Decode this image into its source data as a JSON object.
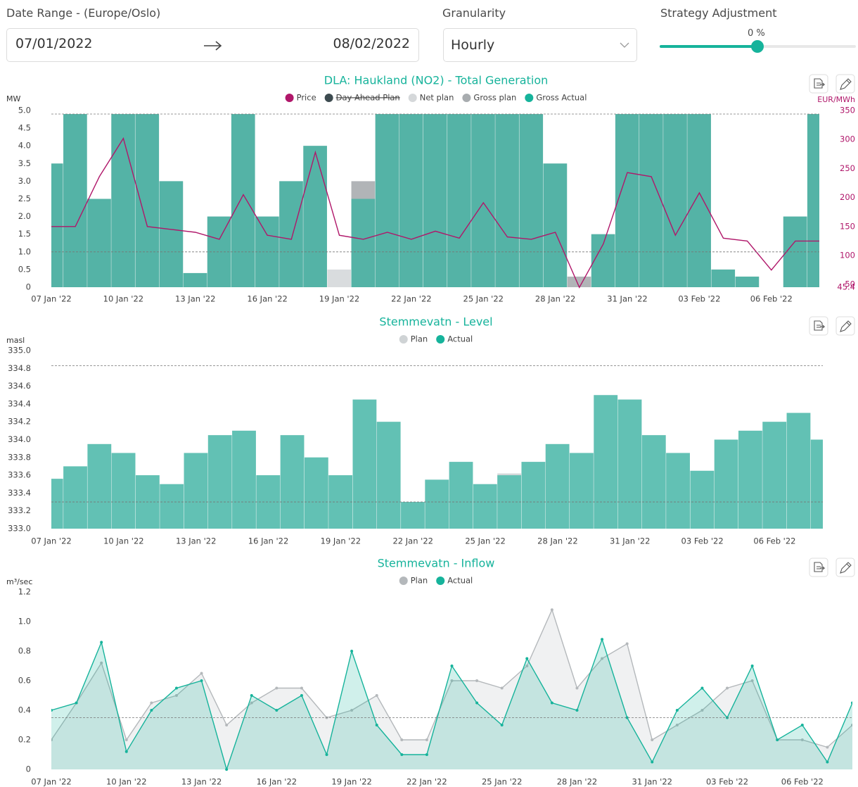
{
  "controls": {
    "date_range_label": "Date Range - (Europe/Oslo)",
    "start_date": "07/01/2022",
    "end_date": "08/02/2022",
    "granularity_label": "Granularity",
    "granularity": "Hourly",
    "strategy_label": "Strategy Adjustment",
    "strategy_value": "0 %"
  },
  "chart_data": [
    {
      "type": "bar",
      "title": "DLA: Haukland (NO2) - Total Generation",
      "ylabel": "MW",
      "y2label": "EUR/MWh",
      "x": [
        "2022-01-07",
        "2022-01-08",
        "2022-01-09",
        "2022-01-10",
        "2022-01-11",
        "2022-01-12",
        "2022-01-13",
        "2022-01-14",
        "2022-01-15",
        "2022-01-16",
        "2022-01-17",
        "2022-01-18",
        "2022-01-19",
        "2022-01-20",
        "2022-01-21",
        "2022-01-22",
        "2022-01-23",
        "2022-01-24",
        "2022-01-25",
        "2022-01-26",
        "2022-01-27",
        "2022-01-28",
        "2022-01-29",
        "2022-01-30",
        "2022-01-31",
        "2022-02-01",
        "2022-02-02",
        "2022-02-03",
        "2022-02-04",
        "2022-02-05",
        "2022-02-06",
        "2022-02-07",
        "2022-02-08"
      ],
      "xlim": [
        "2022-01-07",
        "2022-02-08"
      ],
      "xticks": [
        {
          "value": "2022-01-07",
          "label": "07 Jan '22"
        },
        {
          "value": "2022-01-10",
          "label": "10 Jan '22"
        },
        {
          "value": "2022-01-13",
          "label": "13 Jan '22"
        },
        {
          "value": "2022-01-16",
          "label": "16 Jan '22"
        },
        {
          "value": "2022-01-19",
          "label": "19 Jan '22"
        },
        {
          "value": "2022-01-22",
          "label": "22 Jan '22"
        },
        {
          "value": "2022-01-25",
          "label": "25 Jan '22"
        },
        {
          "value": "2022-01-28",
          "label": "28 Jan '22"
        },
        {
          "value": "2022-01-31",
          "label": "31 Jan '22"
        },
        {
          "value": "2022-02-03",
          "label": "03 Feb '22"
        },
        {
          "value": "2022-02-06",
          "label": "06 Feb '22"
        }
      ],
      "ylim": [
        0,
        5
      ],
      "yticks": [
        0,
        0.5,
        {
          "value": 1,
          "label": "1.0"
        },
        1.5,
        {
          "value": 2,
          "label": "2.0"
        },
        2.5,
        {
          "value": 3,
          "label": "3.0"
        },
        3.5,
        {
          "value": 4,
          "label": "4.0"
        },
        4.5,
        {
          "value": 5,
          "label": "5.0"
        }
      ],
      "y2lim": [
        45.4,
        350
      ],
      "y2ticks": [
        45.4,
        50,
        100,
        150,
        200,
        250,
        300,
        350
      ],
      "reference_lines": [
        4.9,
        1.0
      ],
      "series": [
        {
          "name": "Price",
          "type": "line",
          "axis": "y2",
          "color": "#b0176a",
          "values": [
            150,
            150,
            236,
            302,
            150,
            145,
            140,
            128,
            205,
            135,
            128,
            278,
            135,
            128,
            140,
            128,
            142,
            130,
            191,
            132,
            128,
            140,
            45,
            120,
            243,
            236,
            135,
            208,
            130,
            125,
            75,
            125,
            125
          ]
        },
        {
          "name": "Day Ahead Plan",
          "hidden": true,
          "color": "#3d4b50",
          "values": [
            null,
            null,
            null,
            null,
            null,
            null,
            null,
            null,
            null,
            null,
            null,
            null,
            null,
            null,
            null,
            null,
            null,
            null,
            null,
            null,
            null,
            null,
            null,
            null,
            null,
            null,
            null,
            null,
            null,
            null,
            null,
            null,
            null
          ]
        },
        {
          "name": "Net plan",
          "color": "#d5d8da",
          "values": [
            0,
            0,
            0,
            0,
            0,
            0,
            0,
            0,
            0,
            0,
            0,
            0,
            0.5,
            0,
            0,
            0,
            0,
            0,
            0,
            0,
            0,
            0,
            0,
            0,
            0,
            0,
            0,
            0,
            0,
            0,
            0,
            0,
            0
          ]
        },
        {
          "name": "Gross plan",
          "color": "#a8acaf",
          "values": [
            3.5,
            4.9,
            2.5,
            4.9,
            4.9,
            3.0,
            0.4,
            2.0,
            4.9,
            2.0,
            3.0,
            4.0,
            0,
            3.0,
            4.9,
            4.9,
            4.9,
            4.9,
            4.9,
            4.9,
            4.9,
            3.5,
            0.3,
            1.5,
            4.9,
            4.9,
            4.9,
            4.9,
            0.5,
            0.3,
            0,
            2.0,
            4.9
          ]
        },
        {
          "name": "Gross Actual",
          "color": "#16b39b",
          "values": [
            3.5,
            4.9,
            2.5,
            4.9,
            4.9,
            3.0,
            0.4,
            2.0,
            4.9,
            2.0,
            3.0,
            4.0,
            0,
            2.5,
            4.9,
            4.9,
            4.9,
            4.9,
            4.9,
            4.9,
            4.9,
            3.5,
            0,
            1.5,
            4.9,
            4.9,
            4.9,
            4.9,
            0.5,
            0.3,
            0,
            2.0,
            4.9
          ]
        }
      ]
    },
    {
      "type": "bar",
      "title": "Stemmevatn - Level",
      "ylabel": "masl",
      "x": [
        "2022-01-07",
        "2022-01-08",
        "2022-01-09",
        "2022-01-10",
        "2022-01-11",
        "2022-01-12",
        "2022-01-13",
        "2022-01-14",
        "2022-01-15",
        "2022-01-16",
        "2022-01-17",
        "2022-01-18",
        "2022-01-19",
        "2022-01-20",
        "2022-01-21",
        "2022-01-22",
        "2022-01-23",
        "2022-01-24",
        "2022-01-25",
        "2022-01-26",
        "2022-01-27",
        "2022-01-28",
        "2022-01-29",
        "2022-01-30",
        "2022-01-31",
        "2022-02-01",
        "2022-02-02",
        "2022-02-03",
        "2022-02-04",
        "2022-02-05",
        "2022-02-06",
        "2022-02-07",
        "2022-02-08"
      ],
      "xlim": [
        "2022-01-07",
        "2022-02-08"
      ],
      "xticks": [
        {
          "value": "2022-01-07",
          "label": "07 Jan '22"
        },
        {
          "value": "2022-01-10",
          "label": "10 Jan '22"
        },
        {
          "value": "2022-01-13",
          "label": "13 Jan '22"
        },
        {
          "value": "2022-01-16",
          "label": "16 Jan '22"
        },
        {
          "value": "2022-01-19",
          "label": "19 Jan '22"
        },
        {
          "value": "2022-01-22",
          "label": "22 Jan '22"
        },
        {
          "value": "2022-01-25",
          "label": "25 Jan '22"
        },
        {
          "value": "2022-01-28",
          "label": "28 Jan '22"
        },
        {
          "value": "2022-01-31",
          "label": "31 Jan '22"
        },
        {
          "value": "2022-02-03",
          "label": "03 Feb '22"
        },
        {
          "value": "2022-02-06",
          "label": "06 Feb '22"
        }
      ],
      "ylim": [
        333,
        335
      ],
      "yticks": [
        {
          "value": 333,
          "label": "333.0"
        },
        333.2,
        333.4,
        333.6,
        333.8,
        {
          "value": 334,
          "label": "334.0"
        },
        334.2,
        334.4,
        334.6,
        334.8,
        {
          "value": 335,
          "label": "335.0"
        }
      ],
      "reference_lines": [
        334.83,
        333.3
      ],
      "series": [
        {
          "name": "Plan",
          "color": "#cfd3d5",
          "values": [
            333.56,
            333.7,
            333.95,
            333.85,
            333.6,
            333.5,
            333.85,
            334.05,
            334.1,
            333.6,
            334.05,
            333.8,
            333.6,
            334.45,
            334.2,
            333.3,
            333.55,
            333.75,
            333.5,
            333.62,
            333.75,
            333.95,
            333.85,
            334.5,
            334.45,
            334.05,
            333.85,
            333.65,
            334.0,
            334.1,
            334.2,
            334.3,
            334.0
          ]
        },
        {
          "name": "Actual",
          "color": "#16b39b",
          "values": [
            333.56,
            333.7,
            333.95,
            333.85,
            333.6,
            333.5,
            333.85,
            334.05,
            334.1,
            333.6,
            334.05,
            333.8,
            333.6,
            334.45,
            334.2,
            333.3,
            333.55,
            333.75,
            333.5,
            333.6,
            333.75,
            333.95,
            333.85,
            334.5,
            334.45,
            334.05,
            333.85,
            333.65,
            334.0,
            334.1,
            334.2,
            334.3,
            334.0
          ]
        }
      ]
    },
    {
      "type": "area",
      "title": "Stemmevatn - Inflow",
      "ylabel": "m³/sec",
      "x": [
        "2022-01-07",
        "2022-01-08",
        "2022-01-09",
        "2022-01-10",
        "2022-01-11",
        "2022-01-12",
        "2022-01-13",
        "2022-01-14",
        "2022-01-15",
        "2022-01-16",
        "2022-01-17",
        "2022-01-18",
        "2022-01-19",
        "2022-01-20",
        "2022-01-21",
        "2022-01-22",
        "2022-01-23",
        "2022-01-24",
        "2022-01-25",
        "2022-01-26",
        "2022-01-27",
        "2022-01-28",
        "2022-01-29",
        "2022-01-30",
        "2022-01-31",
        "2022-02-01",
        "2022-02-02",
        "2022-02-03",
        "2022-02-04",
        "2022-02-05",
        "2022-02-06",
        "2022-02-07",
        "2022-02-08"
      ],
      "xlim": [
        "2022-01-07",
        "2022-02-08"
      ],
      "xticks": [
        {
          "value": "2022-01-07",
          "label": "07 Jan '22"
        },
        {
          "value": "2022-01-10",
          "label": "10 Jan '22"
        },
        {
          "value": "2022-01-13",
          "label": "13 Jan '22"
        },
        {
          "value": "2022-01-16",
          "label": "16 Jan '22"
        },
        {
          "value": "2022-01-19",
          "label": "19 Jan '22"
        },
        {
          "value": "2022-01-22",
          "label": "22 Jan '22"
        },
        {
          "value": "2022-01-25",
          "label": "25 Jan '22"
        },
        {
          "value": "2022-01-28",
          "label": "28 Jan '22"
        },
        {
          "value": "2022-01-31",
          "label": "31 Jan '22"
        },
        {
          "value": "2022-02-03",
          "label": "03 Feb '22"
        },
        {
          "value": "2022-02-06",
          "label": "06 Feb '22"
        }
      ],
      "ylim": [
        0,
        1.2
      ],
      "yticks": [
        0,
        0.2,
        0.4,
        0.6,
        0.8,
        {
          "value": 1,
          "label": "1.0"
        },
        1.2
      ],
      "reference_lines": [
        0.35
      ],
      "series": [
        {
          "name": "Plan",
          "color": "#b4b8bb",
          "fill": "#eceeef",
          "values": [
            0.2,
            0.45,
            0.72,
            0.2,
            0.45,
            0.5,
            0.65,
            0.3,
            0.45,
            0.55,
            0.55,
            0.35,
            0.4,
            0.5,
            0.2,
            0.2,
            0.6,
            0.6,
            0.55,
            0.7,
            1.08,
            0.55,
            0.75,
            0.85,
            0.2,
            0.3,
            0.4,
            0.55,
            0.6,
            0.2,
            0.2,
            0.15,
            0.3
          ]
        },
        {
          "name": "Actual",
          "color": "#16b39b",
          "fill": "#16b39b",
          "values": [
            0.4,
            0.45,
            0.86,
            0.12,
            0.4,
            0.55,
            0.6,
            0.0,
            0.5,
            0.4,
            0.5,
            0.1,
            0.8,
            0.3,
            0.1,
            0.1,
            0.7,
            0.45,
            0.3,
            0.75,
            0.45,
            0.4,
            0.88,
            0.35,
            0.05,
            0.4,
            0.55,
            0.35,
            0.7,
            0.2,
            0.3,
            0.05,
            0.45
          ]
        }
      ]
    }
  ]
}
